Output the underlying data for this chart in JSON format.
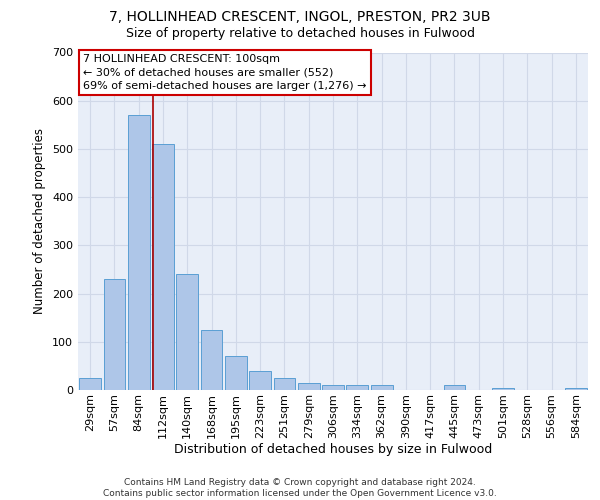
{
  "title": "7, HOLLINHEAD CRESCENT, INGOL, PRESTON, PR2 3UB",
  "subtitle": "Size of property relative to detached houses in Fulwood",
  "xlabel": "Distribution of detached houses by size in Fulwood",
  "ylabel": "Number of detached properties",
  "categories": [
    "29sqm",
    "57sqm",
    "84sqm",
    "112sqm",
    "140sqm",
    "168sqm",
    "195sqm",
    "223sqm",
    "251sqm",
    "279sqm",
    "306sqm",
    "334sqm",
    "362sqm",
    "390sqm",
    "417sqm",
    "445sqm",
    "473sqm",
    "501sqm",
    "528sqm",
    "556sqm",
    "584sqm"
  ],
  "bar_heights": [
    25,
    230,
    570,
    510,
    240,
    125,
    70,
    40,
    25,
    15,
    10,
    10,
    10,
    0,
    0,
    10,
    0,
    5,
    0,
    0,
    5
  ],
  "bar_color": "#aec6e8",
  "bar_edge_color": "#5a9fd4",
  "grid_color": "#d0d8e8",
  "background_color": "#e8eef8",
  "annotation_text": "7 HOLLINHEAD CRESCENT: 100sqm\n← 30% of detached houses are smaller (552)\n69% of semi-detached houses are larger (1,276) →",
  "annotation_box_color": "#cc0000",
  "vline_x": 2.57,
  "vline_color": "#aa0000",
  "ylim": [
    0,
    700
  ],
  "yticks": [
    0,
    100,
    200,
    300,
    400,
    500,
    600,
    700
  ],
  "footnote": "Contains HM Land Registry data © Crown copyright and database right 2024.\nContains public sector information licensed under the Open Government Licence v3.0.",
  "title_fontsize": 10,
  "subtitle_fontsize": 9,
  "xlabel_fontsize": 9,
  "ylabel_fontsize": 8.5,
  "tick_fontsize": 8,
  "annotation_fontsize": 8,
  "footnote_fontsize": 6.5
}
